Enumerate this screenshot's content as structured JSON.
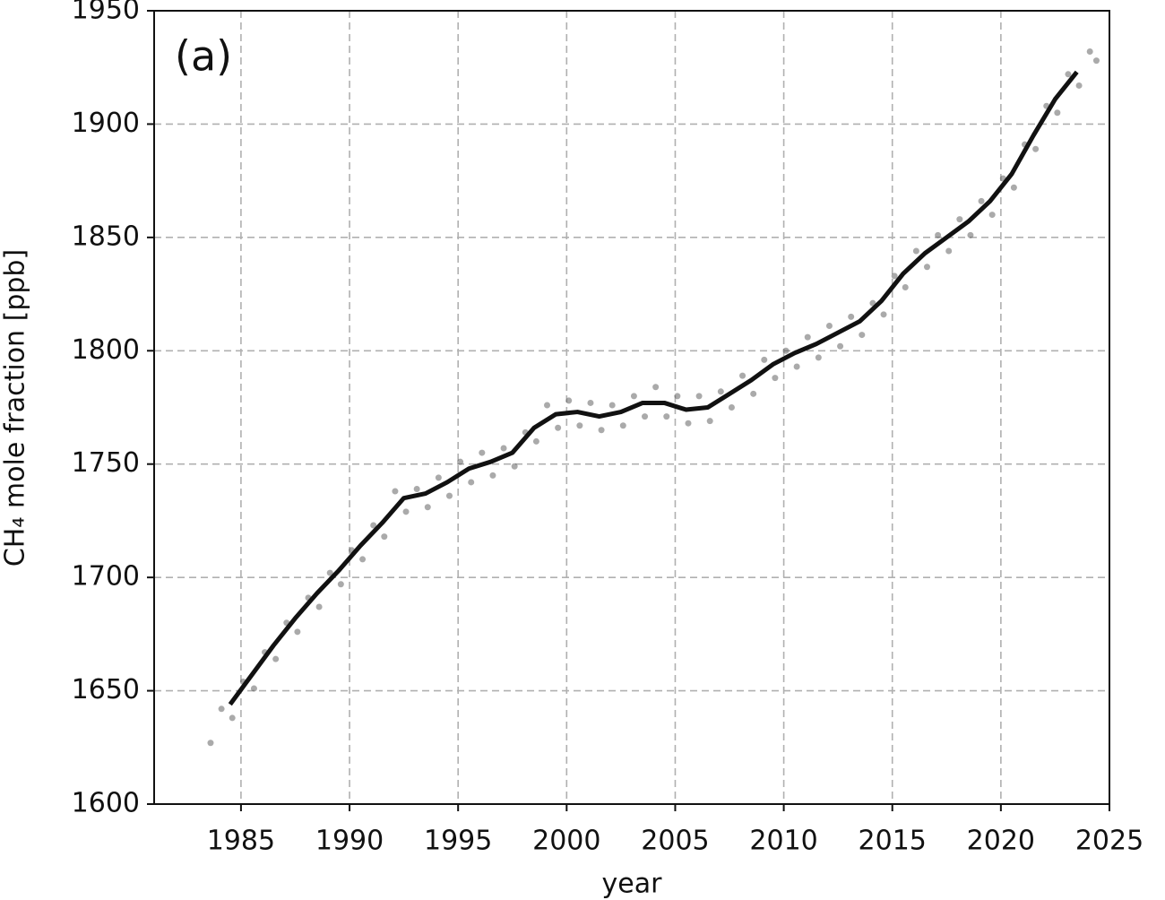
{
  "chart_data": {
    "type": "line",
    "annotation": "(a)",
    "xlabel": "year",
    "ylabel": "CH₄ mole fraction [ppb]",
    "xlim": [
      1981,
      2025
    ],
    "xticks": [
      1985,
      1990,
      1995,
      2000,
      2005,
      2010,
      2015,
      2020,
      2025
    ],
    "ylim": [
      1600,
      1950
    ],
    "yticks": [
      1600,
      1650,
      1700,
      1750,
      1800,
      1850,
      1900,
      1950
    ],
    "grid": true,
    "series": [
      {
        "type": "scatter",
        "color": "#555555",
        "x": [
          1983.6,
          1984.1,
          1984.6,
          1985.1,
          1985.6,
          1986.1,
          1986.6,
          1987.1,
          1987.6,
          1988.1,
          1988.6,
          1989.1,
          1989.6,
          1990.1,
          1990.6,
          1991.1,
          1991.6,
          1992.1,
          1992.6,
          1993.1,
          1993.6,
          1994.1,
          1994.6,
          1995.1,
          1995.6,
          1996.1,
          1996.6,
          1997.1,
          1997.6,
          1998.1,
          1998.6,
          1999.1,
          1999.6,
          2000.1,
          2000.6,
          2001.1,
          2001.6,
          2002.1,
          2002.6,
          2003.1,
          2003.6,
          2004.1,
          2004.6,
          2005.1,
          2005.6,
          2006.1,
          2006.6,
          2007.1,
          2007.6,
          2008.1,
          2008.6,
          2009.1,
          2009.6,
          2010.1,
          2010.6,
          2011.1,
          2011.6,
          2012.1,
          2012.6,
          2013.1,
          2013.6,
          2014.1,
          2014.6,
          2015.1,
          2015.6,
          2016.1,
          2016.6,
          2017.1,
          2017.6,
          2018.1,
          2018.6,
          2019.1,
          2019.6,
          2020.1,
          2020.6,
          2021.1,
          2021.6,
          2022.1,
          2022.6,
          2023.1,
          2023.6,
          2024.1,
          2024.4
        ],
        "values": [
          1627,
          1642,
          1638,
          1654,
          1651,
          1667,
          1664,
          1680,
          1676,
          1691,
          1687,
          1702,
          1697,
          1712,
          1708,
          1723,
          1718,
          1738,
          1729,
          1739,
          1731,
          1744,
          1736,
          1751,
          1742,
          1755,
          1745,
          1757,
          1749,
          1764,
          1760,
          1776,
          1766,
          1778,
          1767,
          1777,
          1765,
          1776,
          1767,
          1780,
          1771,
          1784,
          1771,
          1780,
          1768,
          1780,
          1769,
          1782,
          1775,
          1789,
          1781,
          1796,
          1788,
          1800,
          1793,
          1806,
          1797,
          1811,
          1802,
          1815,
          1807,
          1821,
          1816,
          1833,
          1828,
          1844,
          1837,
          1851,
          1844,
          1858,
          1851,
          1866,
          1860,
          1876,
          1872,
          1891,
          1889,
          1908,
          1905,
          1922,
          1917,
          1932,
          1928
        ]
      },
      {
        "type": "line",
        "color": "#111111",
        "x": [
          1984.5,
          1985.5,
          1986.5,
          1987.5,
          1988.5,
          1989.5,
          1990.5,
          1991.5,
          1992.5,
          1993.5,
          1994.5,
          1995.5,
          1996.5,
          1997.5,
          1998.5,
          1999.5,
          2000.5,
          2001.5,
          2002.5,
          2003.5,
          2004.5,
          2005.5,
          2006.5,
          2007.5,
          2008.5,
          2009.5,
          2010.5,
          2011.5,
          2012.5,
          2013.5,
          2014.5,
          2015.5,
          2016.5,
          2017.5,
          2018.5,
          2019.5,
          2020.5,
          2021.5,
          2022.5,
          2023.5
        ],
        "values": [
          1644,
          1657,
          1670,
          1682,
          1693,
          1703,
          1714,
          1724,
          1735,
          1737,
          1742,
          1748,
          1751,
          1755,
          1766,
          1772,
          1773,
          1771,
          1773,
          1777,
          1777,
          1774,
          1775,
          1781,
          1787,
          1794,
          1799,
          1803,
          1808,
          1813,
          1822,
          1834,
          1843,
          1850,
          1857,
          1866,
          1878,
          1895,
          1911,
          1923
        ]
      }
    ]
  }
}
